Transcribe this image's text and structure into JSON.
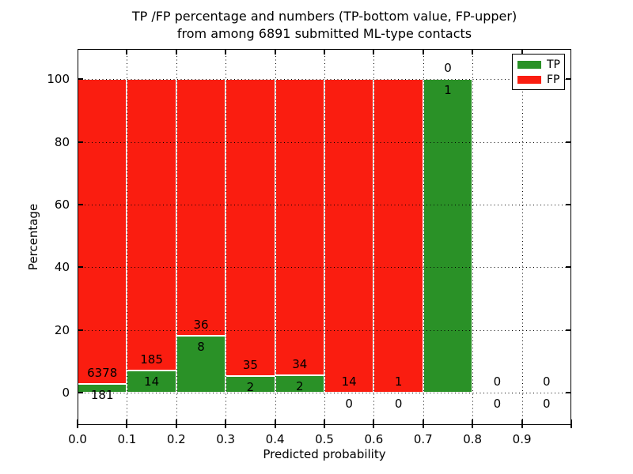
{
  "title": {
    "line1": "TP /FP percentage and numbers (TP-bottom value, FP-upper)",
    "line2": "from among 6891 submitted ML-type contacts"
  },
  "x_axis": {
    "label": "Predicted probability",
    "tick_labels": [
      "0.0",
      "0.1",
      "0.2",
      "0.3",
      "0.4",
      "0.5",
      "0.6",
      "0.7",
      "0.8",
      "0.9"
    ]
  },
  "y_axis": {
    "label": "Percentage",
    "tick_labels": [
      "0",
      "20",
      "40",
      "60",
      "80",
      "100"
    ],
    "tick_values": [
      0,
      20,
      40,
      60,
      80,
      100
    ]
  },
  "legend": {
    "items": [
      {
        "label": "TP",
        "color": "#2a9127"
      },
      {
        "label": "FP",
        "color": "#fa1d10"
      }
    ]
  },
  "chart_data": {
    "type": "bar",
    "stacked": true,
    "title": "TP /FP percentage and numbers (TP-bottom value, FP-upper) from among 6891 submitted ML-type contacts",
    "xlabel": "Predicted probability",
    "ylabel": "Percentage",
    "total_contacts": 6891,
    "bin_edges": [
      0.0,
      0.1,
      0.2,
      0.3,
      0.4,
      0.5,
      0.6,
      0.7,
      0.8,
      0.9,
      1.0
    ],
    "categories": [
      "0.0-0.1",
      "0.1-0.2",
      "0.2-0.3",
      "0.3-0.4",
      "0.4-0.5",
      "0.5-0.6",
      "0.6-0.7",
      "0.7-0.8",
      "0.8-0.9",
      "0.9-1.0"
    ],
    "series": [
      {
        "name": "TP",
        "color": "#2a9127",
        "counts": [
          181,
          14,
          8,
          2,
          2,
          0,
          0,
          1,
          0,
          0
        ]
      },
      {
        "name": "FP",
        "color": "#fa1d10",
        "counts": [
          6378,
          185,
          36,
          35,
          34,
          14,
          1,
          0,
          0,
          0
        ]
      }
    ],
    "bar_percent_tp": [
      2.76,
      7.04,
      18.18,
      5.41,
      5.56,
      0,
      0,
      100,
      0,
      0
    ],
    "note": "bars show TP/(TP+FP) percentage stacked to 100%; numeric labels are raw counts (TP bottom, FP upper)",
    "xlim": [
      0,
      1.0
    ],
    "ylim": [
      -10.3,
      109.6
    ],
    "grid": "dotted, drawn over bars",
    "bar_edge_color": "#ffffff",
    "legend_position": "upper right"
  }
}
